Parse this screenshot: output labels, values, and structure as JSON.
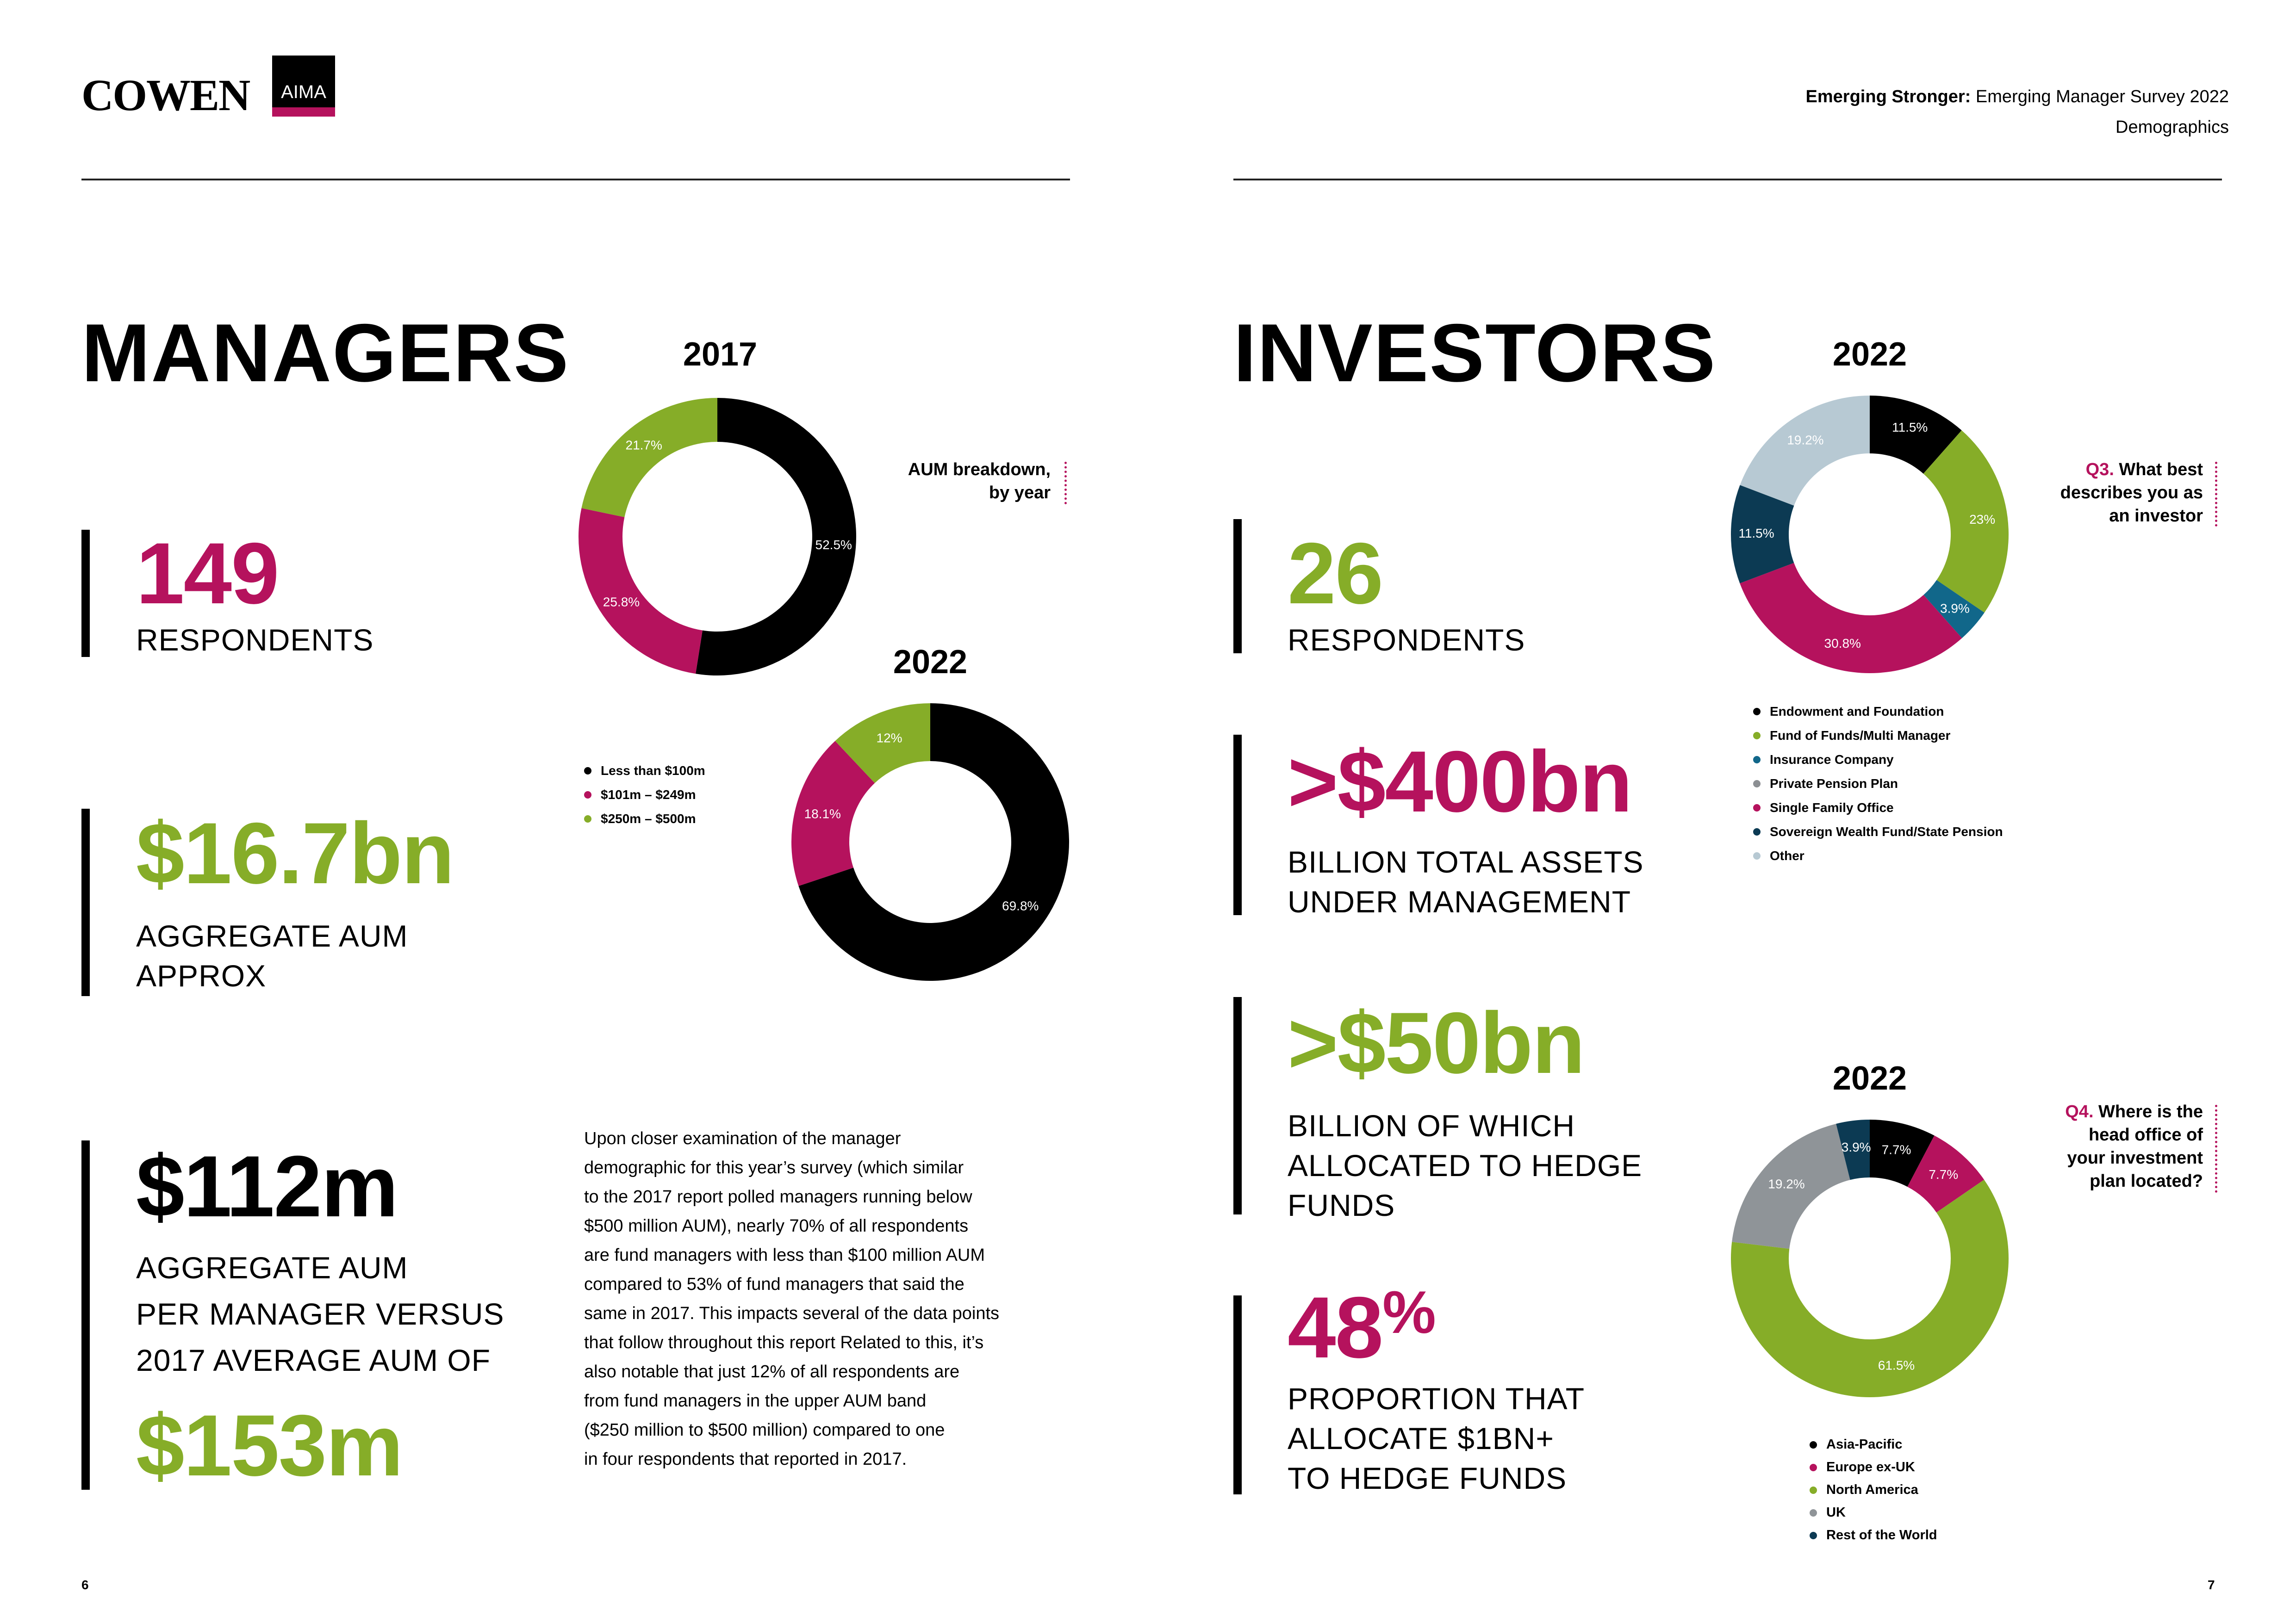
{
  "header": {
    "logo_text": "COWEN",
    "aima_text": "AIMA",
    "title_bold": "Emerging Stronger:",
    "title_rest": " Emerging Manager Survey 2022",
    "section": "Demographics"
  },
  "managers": {
    "title": "MANAGERS",
    "stat1": {
      "value": "149",
      "label": "RESPONDENTS"
    },
    "stat2": {
      "value": "$16.7bn",
      "label1": "AGGREGATE AUM",
      "label2": "APPROX"
    },
    "stat3": {
      "value": "$112m",
      "label1": "AGGREGATE AUM",
      "label2": "PER MANAGER VERSUS",
      "label3": "2017 AVERAGE AUM OF",
      "value2": "$153m"
    },
    "aum_note1": "AUM breakdown,",
    "aum_note2": "by year",
    "paragraph": [
      "Upon closer examination of the manager",
      "demographic for this year’s survey (which similar",
      "to the 2017 report polled managers running below",
      "$500 million AUM), nearly 70% of all respondents",
      "are fund managers with less than $100 million AUM",
      "compared to 53% of fund managers that said the",
      "same in 2017. This impacts several of the data points",
      "that follow throughout this report Related to this, it’s",
      "also notable that just 12% of all respondents are",
      "from fund managers in the upper AUM band",
      "($250 million to $500 million) compared to one",
      "in four respondents that reported in 2017."
    ]
  },
  "investors": {
    "title": "INVESTORS",
    "stat1": {
      "value": "26",
      "label": "RESPONDENTS"
    },
    "stat2": {
      "value": ">$400bn",
      "label1": "BILLION TOTAL ASSETS",
      "label2": "UNDER MANAGEMENT"
    },
    "stat3": {
      "value": ">$50bn",
      "label1": "BILLION OF WHICH",
      "label2": "ALLOCATED TO HEDGE",
      "label3": "FUNDS"
    },
    "stat4": {
      "value": "48",
      "suffix": "%",
      "label1": "PROPORTION THAT",
      "label2": "ALLOCATE $1BN+",
      "label3": "TO HEDGE FUNDS"
    },
    "q3_num": "Q3.",
    "q3_line1": " What best",
    "q3_line2": "describes you as",
    "q3_line3": "an investor",
    "q4_num": "Q4.",
    "q4_line1": " Where is the",
    "q4_line2": "head office of",
    "q4_line3": "your investment",
    "q4_line4": "plan located?"
  },
  "page_numbers": {
    "left": "6",
    "right": "7"
  },
  "chart_data": [
    {
      "type": "pie",
      "title": "2017",
      "categories": [
        "Less than $100m",
        "$101m – $249m",
        "$250m – $500m"
      ],
      "values": [
        52.5,
        25.8,
        21.7
      ],
      "labels": [
        "52.5%",
        "25.8%",
        "21.7%"
      ],
      "colors": [
        "#000000",
        "#b5125d",
        "#86ad28"
      ],
      "legend": "separate, left of 2022 chart"
    },
    {
      "type": "pie",
      "title": "2022",
      "categories": [
        "Less than $100m",
        "$101m – $249m",
        "$250m – $500m"
      ],
      "values": [
        69.8,
        18.1,
        12
      ],
      "labels": [
        "69.8%",
        "18.1%",
        "12%"
      ],
      "colors": [
        "#000000",
        "#b5125d",
        "#86ad28"
      ]
    },
    {
      "type": "pie",
      "title": "2022",
      "categories": [
        "Endowment and Foundation",
        "Fund of Funds/Multi Manager",
        "Insurance Company",
        "Private Pension Plan",
        "Single Family Office",
        "Sovereign Wealth Fund/State Pension",
        "Other"
      ],
      "values": [
        11.5,
        23,
        3.9,
        0,
        30.8,
        11.5,
        19.2
      ],
      "labels": [
        "11.5%",
        "23%",
        "3.9%",
        "",
        "30.8%",
        "11.5%",
        "19.2%"
      ],
      "colors": [
        "#000000",
        "#86ad28",
        "#11678a",
        "#8c8f93",
        "#b5125d",
        "#0c3a53",
        "#b7c9d3"
      ],
      "legend": "below"
    },
    {
      "type": "pie",
      "title": "2022",
      "categories": [
        "Asia-Pacific",
        "Europe ex-UK",
        "North America",
        "UK",
        "Rest of the World"
      ],
      "values": [
        7.7,
        7.7,
        61.5,
        19.2,
        3.9
      ],
      "labels": [
        "7.7%",
        "7.7%",
        "61.5%",
        "19.2%",
        "3.9%"
      ],
      "colors": [
        "#000000",
        "#b5125d",
        "#86ad28",
        "#8f9498",
        "#0c3a53"
      ],
      "legend": "below"
    }
  ]
}
